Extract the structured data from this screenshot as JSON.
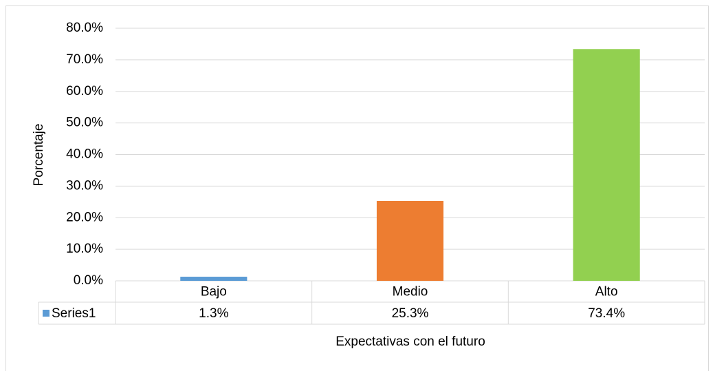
{
  "chart_data": {
    "type": "bar",
    "categories": [
      "Bajo",
      "Medio",
      "Alto"
    ],
    "series": [
      {
        "name": "Series1",
        "color": "#5b9bd5",
        "values": [
          1.3,
          25.3,
          73.4
        ],
        "value_labels": [
          "1.3%",
          "25.3%",
          "73.4%"
        ]
      }
    ],
    "point_colors": [
      "#5b9bd5",
      "#ed7d31",
      "#92d050"
    ],
    "ylim": [
      0,
      80
    ],
    "yticks": [
      {
        "value": 0,
        "label": "0.0%"
      },
      {
        "value": 10,
        "label": "10.0%"
      },
      {
        "value": 20,
        "label": "20.0%"
      },
      {
        "value": 30,
        "label": "30.0%"
      },
      {
        "value": 40,
        "label": "40.0%"
      },
      {
        "value": 50,
        "label": "50.0%"
      },
      {
        "value": 60,
        "label": "60.0%"
      },
      {
        "value": 70,
        "label": "70.0%"
      },
      {
        "value": 80,
        "label": "80.0%"
      }
    ],
    "grid": true,
    "y_label": "Porcentaje",
    "x_label": "Expectativas con el futuro"
  }
}
